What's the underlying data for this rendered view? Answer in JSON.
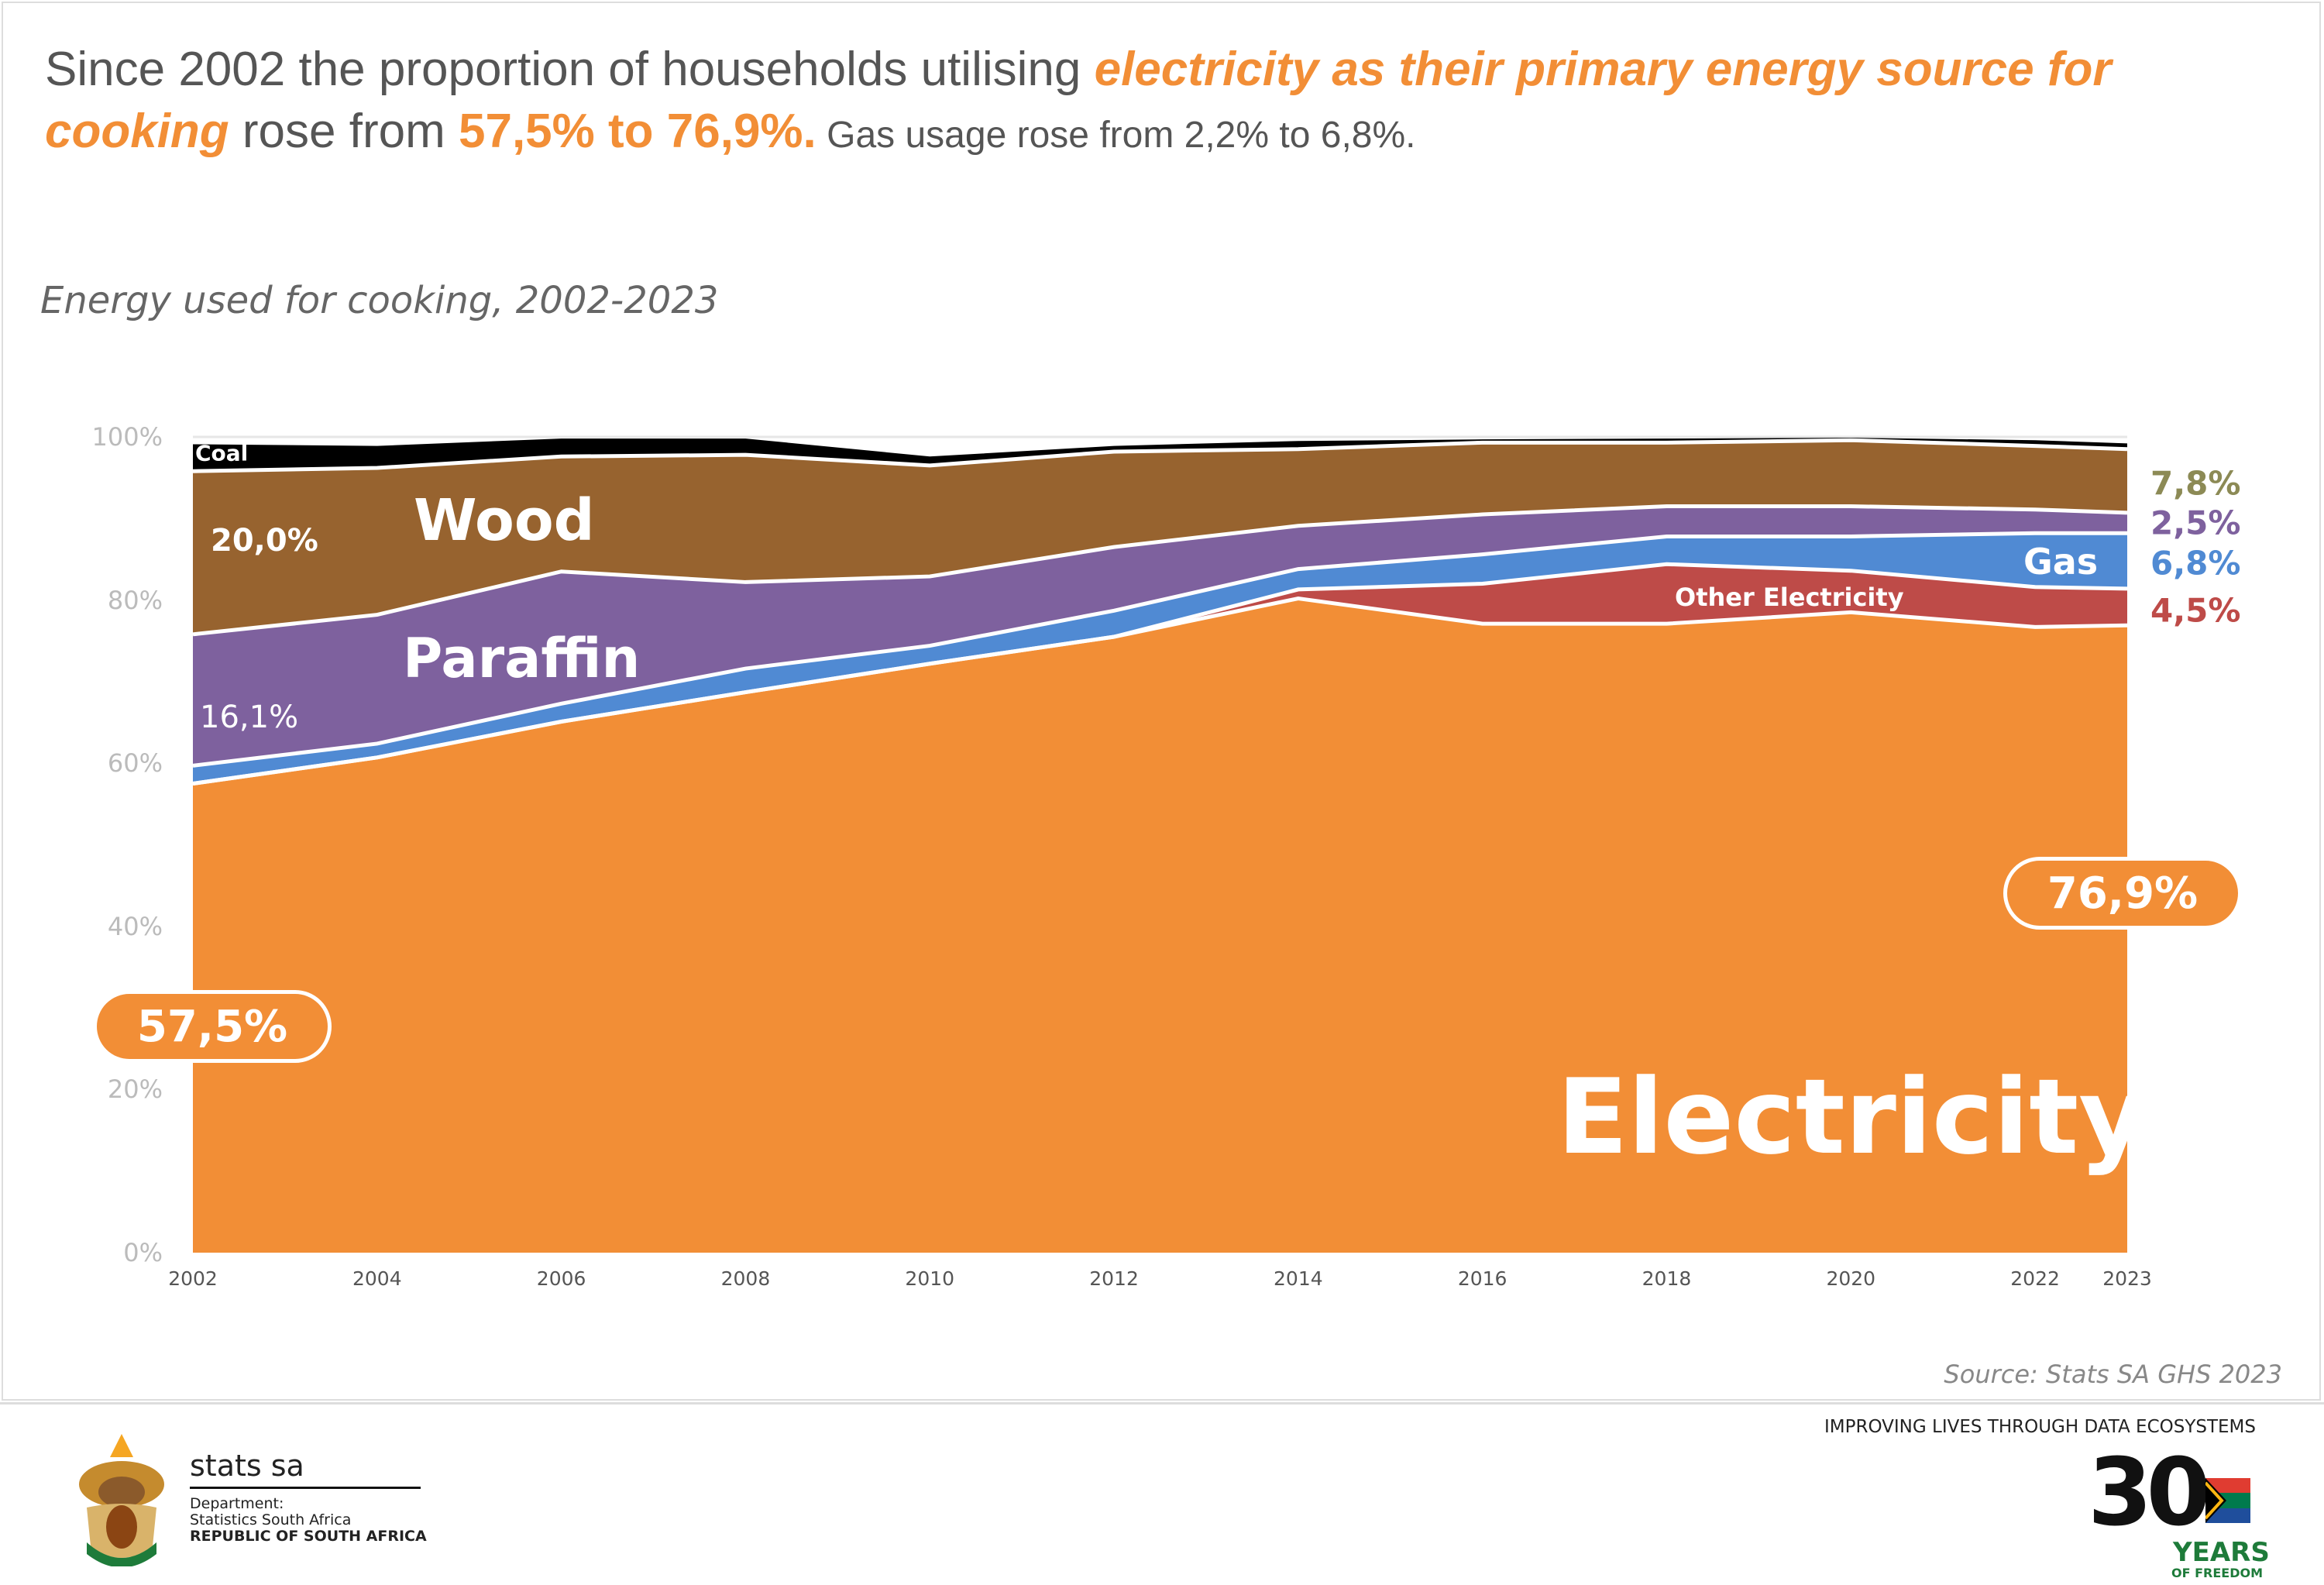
{
  "headline": {
    "part1": "Since 2002 the proportion of households utilising ",
    "emphasis": "electricity as their primary energy source for",
    "emphasis2": "cooking",
    "part2": " rose from ",
    "change": "57,5% to 76,9%.",
    "gas_note": " Gas usage rose from 2,2% to 6,8%."
  },
  "colors": {
    "electricity": "#F28E36",
    "other_electricity": "#BE4B48",
    "gas": "#508AD3",
    "paraffin": "#7E619E",
    "wood": "#97632F",
    "coal": "#000000",
    "wood_label": "#8C8A55"
  },
  "chart_data": {
    "type": "area",
    "stacked": true,
    "title": "Energy used for cooking, 2002-2023",
    "xlabel": "",
    "ylabel": "",
    "ylim": [
      0,
      100
    ],
    "y_ticks": [
      "0%",
      "20%",
      "40%",
      "60%",
      "80%",
      "100%"
    ],
    "x": [
      2002,
      2004,
      2006,
      2008,
      2010,
      2012,
      2014,
      2016,
      2018,
      2020,
      2022,
      2023
    ],
    "x_ticks": [
      "2002",
      "2004",
      "2006",
      "2008",
      "2010",
      "2012",
      "2014",
      "2016",
      "2018",
      "2020",
      "2022",
      "2023"
    ],
    "series": [
      {
        "name": "Electricity",
        "values": [
          57.5,
          60.7,
          65.1,
          68.7,
          72.2,
          75.5,
          80.2,
          77.1,
          77.1,
          78.5,
          76.7,
          76.9
        ]
      },
      {
        "name": "Other Electricity",
        "values": [
          0,
          0,
          0,
          0,
          0,
          0,
          1.1,
          4.9,
          7.3,
          5.1,
          4.9,
          4.5
        ]
      },
      {
        "name": "Gas",
        "values": [
          2.2,
          1.7,
          2.2,
          2.9,
          2.2,
          3.2,
          2.5,
          3.6,
          3.4,
          4.2,
          6.6,
          6.8
        ]
      },
      {
        "name": "Paraffin",
        "values": [
          16.1,
          15.8,
          16.2,
          10.6,
          8.5,
          7.8,
          5.3,
          4.9,
          3.7,
          3.7,
          2.9,
          2.5
        ]
      },
      {
        "name": "Wood",
        "values": [
          20.0,
          18.0,
          14.1,
          15.6,
          13.6,
          11.7,
          9.4,
          8.8,
          7.8,
          8.1,
          7.8,
          7.8
        ]
      },
      {
        "name": "Coal",
        "values": [
          3.3,
          2.7,
          2.2,
          2.0,
          1.1,
          0.7,
          1.0,
          0.4,
          0.5,
          0.3,
          0.7,
          0.7
        ]
      }
    ],
    "annotations": {
      "electricity": "Electricity",
      "wood": "Wood",
      "paraffin": "Paraffin",
      "coal": "Coal",
      "gas": "Gas",
      "other_electricity": "Other Electricity",
      "wood_2002": "20,0%",
      "paraffin_2002": "16,1%",
      "electricity_2002": "57,5%",
      "electricity_2023": "76,9%",
      "wood_2023": "7,8%",
      "paraffin_2023": "2,5%",
      "gas_2023": "6,8%",
      "other_electricity_2023": "4,5%"
    }
  },
  "source": "Source: Stats SA GHS 2023",
  "footer": {
    "brand": "stats sa",
    "dept": "Department:",
    "dept_name": "Statistics South Africa",
    "country": "REPUBLIC OF SOUTH AFRICA",
    "tagline": "IMPROVING LIVES THROUGH DATA ECOSYSTEMS",
    "logo_number": "30",
    "logo_years": "YEARS",
    "logo_freedom": "OF FREEDOM"
  }
}
